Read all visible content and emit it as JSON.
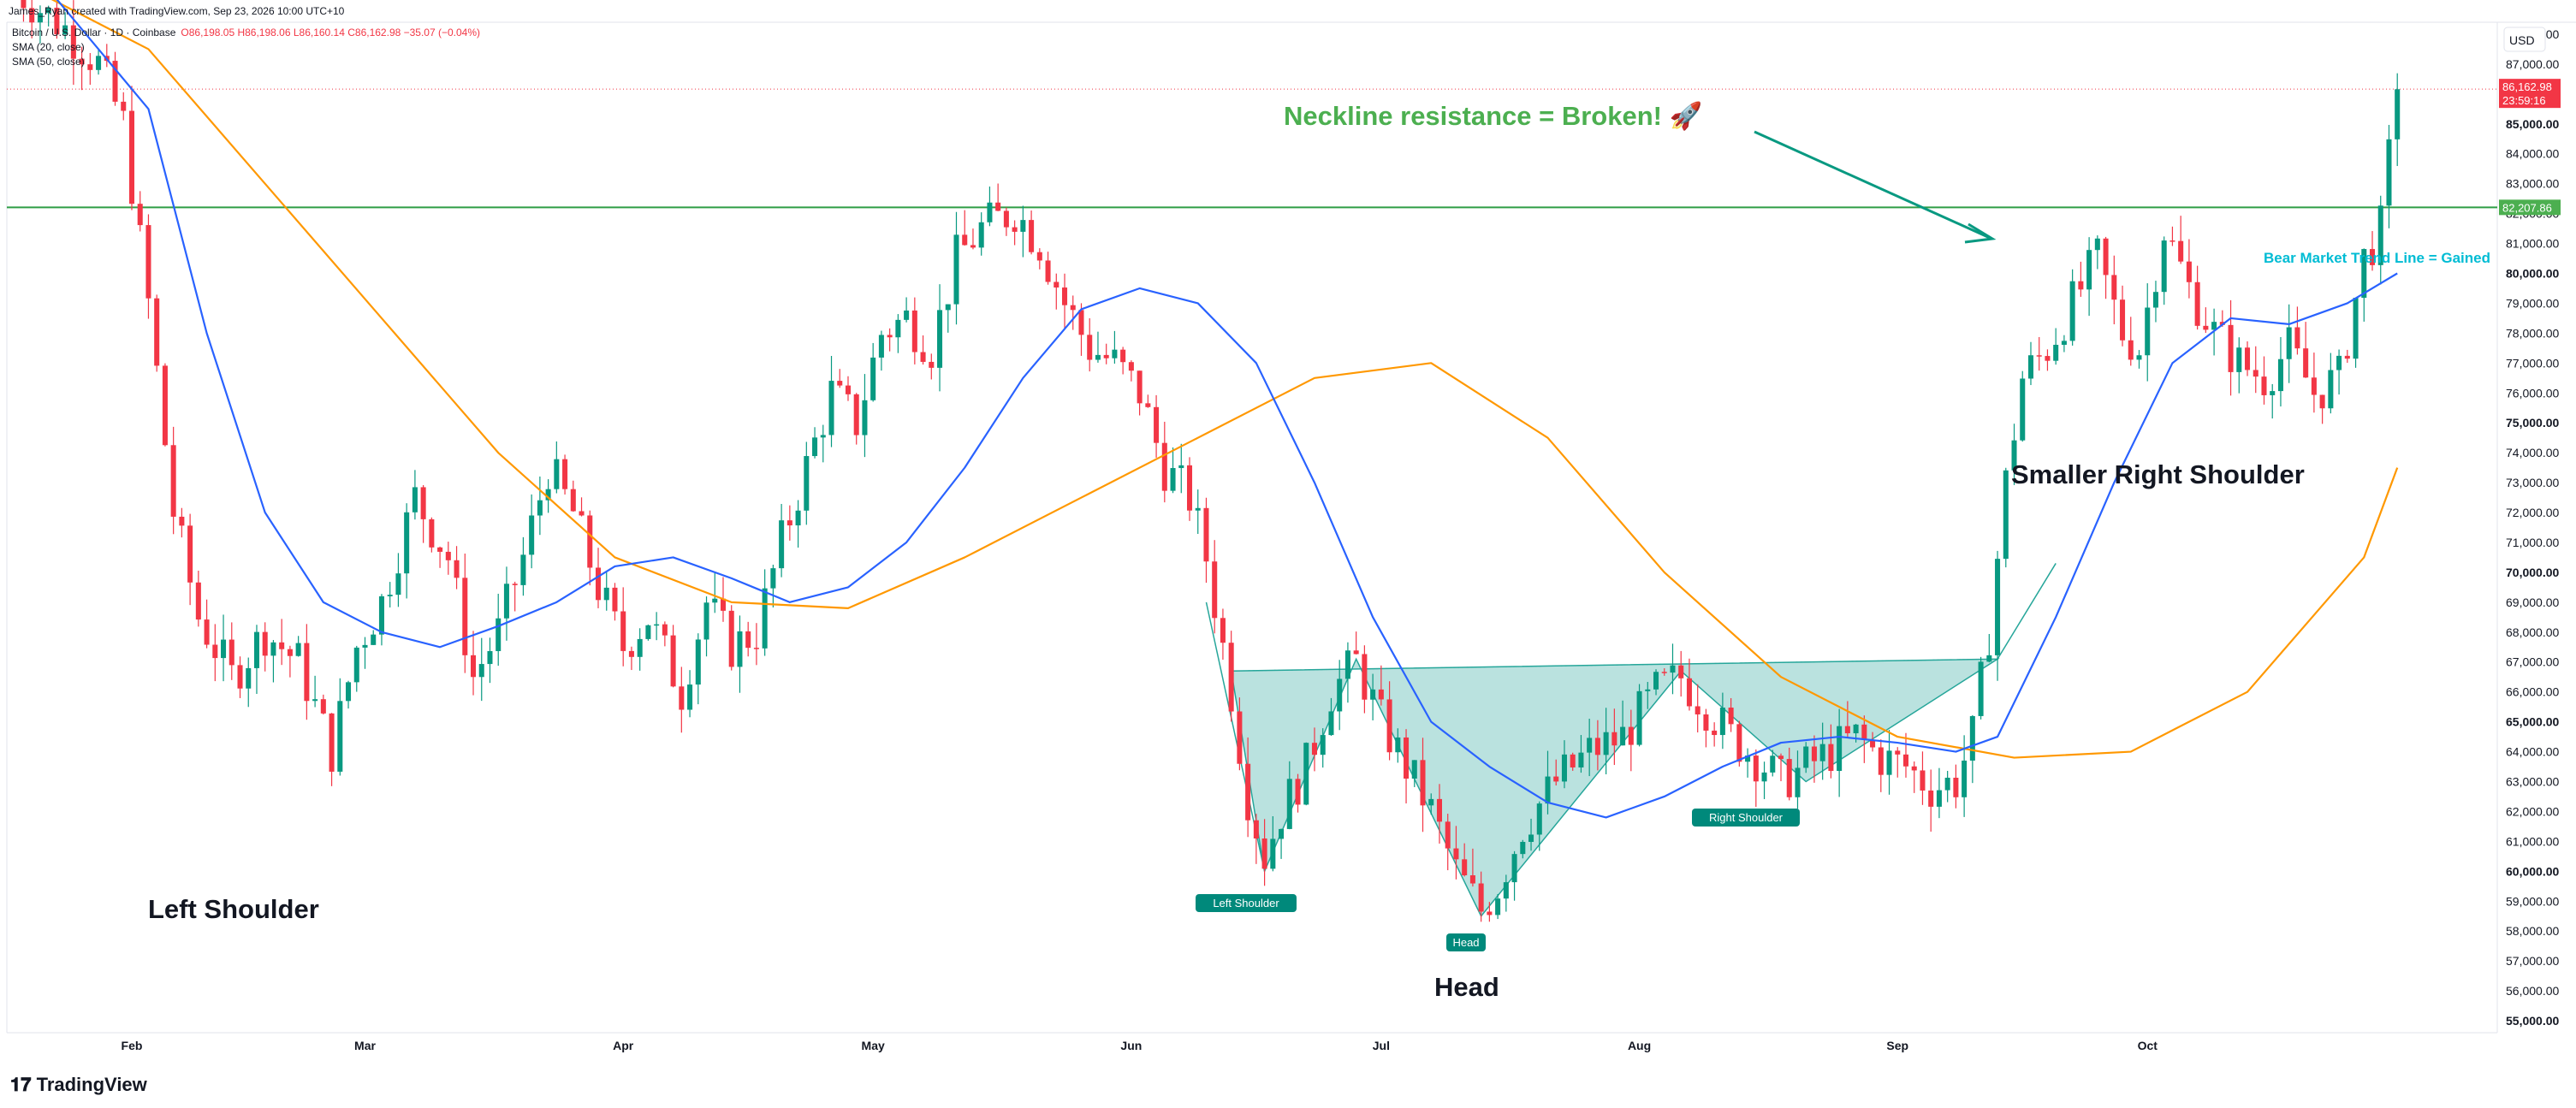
{
  "header": {
    "attribution": "James_Ryan created with TradingView.com, Sep 23, 2026 10:00 UTC+10",
    "symbol_line": "Bitcoin / U.S. Dollar · 1D · Coinbase",
    "ohlc": "O86,198.05 H86,198.06 L86,160.14 C86,162.98 −35.07 (−0.04%)",
    "sma20": "SMA (20, close)",
    "sma50": "SMA (50, close)",
    "currency": "USD"
  },
  "footer": {
    "brand": "TradingView"
  },
  "chart_data": {
    "type": "candlestick",
    "x_ticks": [
      "Feb",
      "Mar",
      "Apr",
      "May",
      "Jun",
      "Jul",
      "Aug",
      "Sep",
      "Oct"
    ],
    "y_ticks": [
      "55,000.00",
      "56,000.00",
      "57,000.00",
      "58,000.00",
      "59,000.00",
      "60,000.00",
      "61,000.00",
      "62,000.00",
      "63,000.00",
      "64,000.00",
      "65,000.00",
      "66,000.00",
      "67,000.00",
      "68,000.00",
      "69,000.00",
      "70,000.00",
      "71,000.00",
      "72,000.00",
      "73,000.00",
      "74,000.00",
      "75,000.00",
      "76,000.00",
      "77,000.00",
      "78,000.00",
      "79,000.00",
      "80,000.00",
      "81,000.00",
      "82,000.00",
      "83,000.00",
      "84,000.00",
      "85,000.00",
      "86,000.00",
      "87,000.00",
      "88,000.00"
    ],
    "ylim": [
      54600,
      88400
    ],
    "price_label": "86,162.98",
    "countdown_label": "23:59:16",
    "neckline_label": "82,207.86",
    "neckline_value": 82207.86,
    "annotations": {
      "neckline_text": "Neckline resistance = Broken! 🚀",
      "bear_trend_text": "Bear Market Trend Line = Gained",
      "left_shoulder_big": "Left Shoulder",
      "head_big": "Head",
      "right_shoulder_big": "Smaller Right Shoulder",
      "left_shoulder_tag": "Left Shoulder",
      "head_tag": "Head",
      "right_shoulder_tag": "Right Shoulder"
    },
    "path_points": [
      [
        "Jan 18",
        89500
      ],
      [
        "Jan 24",
        88200
      ],
      [
        "Jan 28",
        87000
      ],
      [
        "Jan 31",
        85000
      ],
      [
        "Feb 3",
        79000
      ],
      [
        "Feb 6",
        72000
      ],
      [
        "Feb 9",
        68500
      ],
      [
        "Feb 13",
        66500
      ],
      [
        "Feb 17",
        68000
      ],
      [
        "Feb 21",
        67000
      ],
      [
        "Feb 25",
        64000
      ],
      [
        "Feb 28",
        67500
      ],
      [
        "Mar 3",
        69000
      ],
      [
        "Mar 7",
        72500
      ],
      [
        "Mar 11",
        70500
      ],
      [
        "Mar 14",
        66500
      ],
      [
        "Mar 17",
        68000
      ],
      [
        "Mar 20",
        70500
      ],
      [
        "Mar 23",
        73500
      ],
      [
        "Mar 26",
        72000
      ],
      [
        "Mar 29",
        69500
      ],
      [
        "Apr 1",
        67500
      ],
      [
        "Apr 4",
        68500
      ],
      [
        "Apr 8",
        66000
      ],
      [
        "Apr 11",
        69000
      ],
      [
        "Apr 14",
        67500
      ],
      [
        "Apr 17",
        68000
      ],
      [
        "Apr 20",
        71000
      ],
      [
        "Apr 23",
        73500
      ],
      [
        "Apr 26",
        76000
      ],
      [
        "Apr 29",
        75000
      ],
      [
        "May 2",
        78000
      ],
      [
        "May 5",
        78500
      ],
      [
        "May 8",
        77500
      ],
      [
        "May 11",
        80500
      ],
      [
        "May 14",
        81500
      ],
      [
        "May 18",
        82100
      ],
      [
        "May 21",
        81000
      ],
      [
        "May 24",
        79000
      ],
      [
        "May 27",
        77500
      ],
      [
        "May 30",
        77000
      ],
      [
        "Jun 2",
        76000
      ],
      [
        "Jun 5",
        73500
      ],
      [
        "Jun 8",
        72500
      ],
      [
        "Jun 10",
        70500
      ],
      [
        "Jun 13",
        66000
      ],
      [
        "Jun 15",
        62500
      ],
      [
        "Jun 17",
        60500
      ],
      [
        "Jun 19",
        62000
      ],
      [
        "Jun 22",
        63500
      ],
      [
        "Jun 25",
        66000
      ],
      [
        "Jun 28",
        67000
      ],
      [
        "Jul 1",
        65000
      ],
      [
        "Jul 4",
        63500
      ],
      [
        "Jul 7",
        62000
      ],
      [
        "Jul 10",
        60000
      ],
      [
        "Jul 13",
        58700
      ],
      [
        "Jul 15",
        59500
      ],
      [
        "Jul 18",
        61500
      ],
      [
        "Jul 22",
        63000
      ],
      [
        "Jul 26",
        64000
      ],
      [
        "Jul 30",
        64500
      ],
      [
        "Aug 3",
        66000
      ],
      [
        "Aug 6",
        66500
      ],
      [
        "Aug 9",
        65500
      ],
      [
        "Aug 12",
        64500
      ],
      [
        "Aug 15",
        63800
      ],
      [
        "Aug 18",
        63000
      ],
      [
        "Aug 21",
        63500
      ],
      [
        "Aug 24",
        64000
      ],
      [
        "Aug 27",
        64500
      ],
      [
        "Aug 30",
        63800
      ],
      [
        "Sep 2",
        63500
      ],
      [
        "Sep 5",
        62800
      ],
      [
        "Sep 8",
        63000
      ],
      [
        "Sep 10",
        64500
      ],
      [
        "Sep 12",
        68000
      ],
      [
        "Sep 14",
        73000
      ],
      [
        "Sep 16",
        76500
      ],
      [
        "Sep 19",
        77500
      ],
      [
        "Sep 22",
        79000
      ],
      [
        "Sep 25",
        80500
      ],
      [
        "Sep 28",
        78000
      ],
      [
        "Sep 30",
        77500
      ],
      [
        "Oct 3",
        81500
      ],
      [
        "Oct 6",
        79500
      ],
      [
        "Oct 9",
        78000
      ],
      [
        "Oct 12",
        77000
      ],
      [
        "Oct 15",
        76500
      ],
      [
        "Oct 18",
        77500
      ],
      [
        "Oct 21",
        76000
      ],
      [
        "Oct 24",
        76500
      ],
      [
        "Oct 27",
        80500
      ],
      [
        "Oct 29",
        81500
      ],
      [
        "Oct 31",
        86160
      ]
    ],
    "sma20_points": [
      [
        "Jan 22",
        89500
      ],
      [
        "Feb 3",
        85500
      ],
      [
        "Feb 10",
        78000
      ],
      [
        "Feb 17",
        72000
      ],
      [
        "Feb 24",
        69000
      ],
      [
        "Mar 3",
        68000
      ],
      [
        "Mar 10",
        67500
      ],
      [
        "Mar 17",
        68200
      ],
      [
        "Mar 24",
        69000
      ],
      [
        "Mar 31",
        70200
      ],
      [
        "Apr 7",
        70500
      ],
      [
        "Apr 14",
        69800
      ],
      [
        "Apr 21",
        69000
      ],
      [
        "Apr 28",
        69500
      ],
      [
        "May 5",
        71000
      ],
      [
        "May 12",
        73500
      ],
      [
        "May 19",
        76500
      ],
      [
        "May 26",
        78800
      ],
      [
        "Jun 2",
        79500
      ],
      [
        "Jun 9",
        79000
      ],
      [
        "Jun 16",
        77000
      ],
      [
        "Jun 23",
        73000
      ],
      [
        "Jun 30",
        68500
      ],
      [
        "Jul 7",
        65000
      ],
      [
        "Jul 14",
        63500
      ],
      [
        "Jul 21",
        62300
      ],
      [
        "Jul 28",
        61800
      ],
      [
        "Aug 4",
        62500
      ],
      [
        "Aug 11",
        63500
      ],
      [
        "Aug 18",
        64300
      ],
      [
        "Aug 25",
        64500
      ],
      [
        "Sep 1",
        64300
      ],
      [
        "Sep 8",
        64000
      ],
      [
        "Sep 13",
        64500
      ],
      [
        "Sep 20",
        68500
      ],
      [
        "Sep 27",
        73000
      ],
      [
        "Oct 4",
        77000
      ],
      [
        "Oct 11",
        78500
      ],
      [
        "Oct 18",
        78300
      ],
      [
        "Oct 25",
        79000
      ],
      [
        "Oct 31",
        80000
      ]
    ],
    "sma50_points": [
      [
        "Jan 18",
        89800
      ],
      [
        "Feb 3",
        87500
      ],
      [
        "Feb 17",
        83000
      ],
      [
        "Mar 3",
        78500
      ],
      [
        "Mar 17",
        74000
      ],
      [
        "Mar 31",
        70500
      ],
      [
        "Apr 14",
        69000
      ],
      [
        "Apr 28",
        68800
      ],
      [
        "May 12",
        70500
      ],
      [
        "May 26",
        72500
      ],
      [
        "Jun 9",
        74500
      ],
      [
        "Jun 23",
        76500
      ],
      [
        "Jul 7",
        77000
      ],
      [
        "Jul 21",
        74500
      ],
      [
        "Aug 4",
        70000
      ],
      [
        "Aug 18",
        66500
      ],
      [
        "Sep 1",
        64500
      ],
      [
        "Sep 15",
        63800
      ],
      [
        "Sep 29",
        64000
      ],
      [
        "Oct 13",
        66000
      ],
      [
        "Oct 27",
        70500
      ],
      [
        "Oct 31",
        73500
      ]
    ],
    "pattern": {
      "left_shoulder": {
        "date": "Jun 17",
        "price": 60000
      },
      "head": {
        "date": "Jul 13",
        "price": 58500
      },
      "right_shoulder": {
        "date": "Aug 21",
        "price": 63000
      },
      "neck_left": {
        "date": "Jun 13",
        "price": 66700
      },
      "neck_mid": {
        "date": "Jun 28",
        "price": 67100
      },
      "neck_mid2": {
        "date": "Aug 6",
        "price": 66700
      },
      "neck_right": {
        "date": "Sep 13",
        "price": 67100
      }
    },
    "x_range": [
      "Jan 17",
      "Nov 12"
    ]
  }
}
